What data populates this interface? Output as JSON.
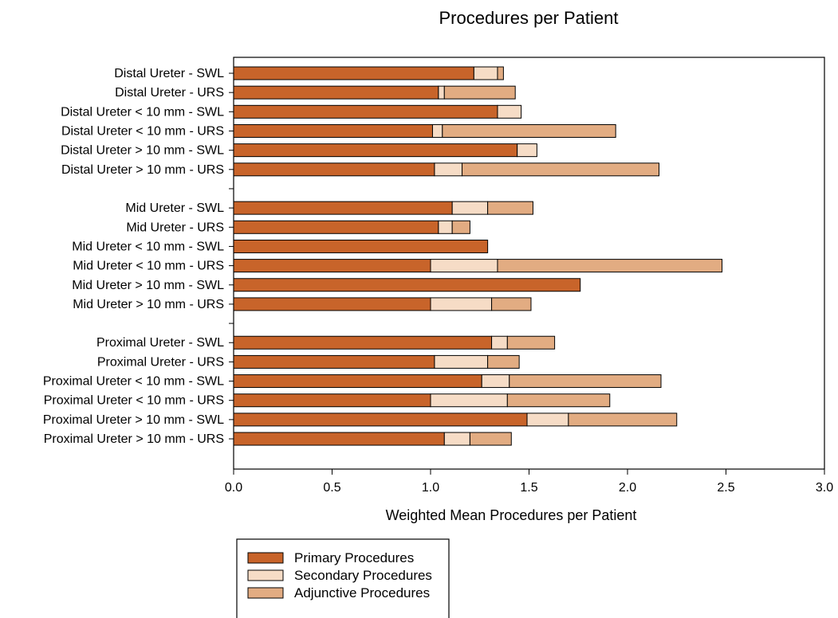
{
  "chart_data": {
    "type": "bar",
    "orientation": "horizontal",
    "stacked": true,
    "title": "Procedures per Patient",
    "xlabel": "Weighted Mean Procedures per Patient",
    "ylabel": "",
    "xlim": [
      0,
      3.0
    ],
    "xticks": [
      "0.0",
      "0.5",
      "1.0",
      "1.5",
      "2.0",
      "2.5",
      "3.0"
    ],
    "grid": false,
    "legend_position": "bottom-left",
    "categories": [
      "Distal Ureter  - SWL",
      "Distal Ureter  - URS",
      "Distal Ureter  < 10 mm - SWL",
      "Distal Ureter  < 10 mm - URS",
      "Distal Ureter  > 10 mm - SWL",
      "Distal Ureter  > 10 mm - URS",
      "",
      "Mid Ureter - SWL",
      "Mid Ureter - URS",
      "Mid Ureter < 10 mm - SWL",
      "Mid Ureter < 10 mm - URS",
      "Mid Ureter > 10 mm - SWL",
      "Mid Ureter > 10 mm - URS",
      "",
      "Proximal Ureter - SWL",
      "Proximal Ureter - URS",
      "Proximal Ureter < 10 mm - SWL",
      "Proximal Ureter < 10 mm - URS",
      "Proximal Ureter > 10 mm - SWL",
      "Proximal Ureter > 10 mm - URS"
    ],
    "series": [
      {
        "name": "Primary Procedures",
        "color": "#c8642a",
        "values": [
          1.22,
          1.04,
          1.34,
          1.01,
          1.44,
          1.02,
          null,
          1.11,
          1.04,
          1.29,
          1.0,
          1.76,
          1.0,
          null,
          1.31,
          1.02,
          1.26,
          1.0,
          1.49,
          1.07
        ]
      },
      {
        "name": "Secondary Procedures",
        "color": "#f6dcc6",
        "values": [
          0.12,
          0.03,
          0.12,
          0.05,
          0.1,
          0.14,
          null,
          0.18,
          0.07,
          0.0,
          0.34,
          0.0,
          0.31,
          null,
          0.08,
          0.27,
          0.14,
          0.39,
          0.21,
          0.13
        ]
      },
      {
        "name": "Adjunctive Procedures",
        "color": "#e2ac82",
        "values": [
          0.03,
          0.36,
          0.0,
          0.88,
          0.0,
          1.0,
          null,
          0.23,
          0.09,
          0.0,
          1.14,
          0.0,
          0.2,
          null,
          0.24,
          0.16,
          0.77,
          0.52,
          0.55,
          0.21
        ]
      }
    ]
  }
}
